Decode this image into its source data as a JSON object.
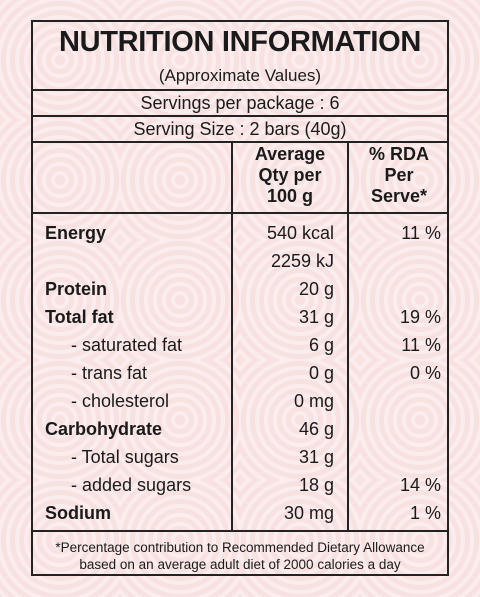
{
  "header": {
    "title": "NUTRITION INFORMATION",
    "subtitle": "(Approximate Values)",
    "servings": "Servings per package : 6",
    "serving_size": "Serving Size : 2 bars (40g)"
  },
  "table": {
    "columns": [
      [
        "Average",
        "Qty per",
        "100 g"
      ],
      [
        "% RDA",
        "Per",
        "Serve*"
      ]
    ],
    "rows": [
      {
        "name": "Energy",
        "bold": true,
        "qty": [
          "540 kcal",
          "2259 kJ"
        ],
        "rda": "11 %"
      },
      {
        "name": "Protein",
        "bold": true,
        "qty": [
          "20 g"
        ]
      },
      {
        "name": "Total fat",
        "bold": true,
        "qty": [
          "31 g"
        ],
        "rda": "19 %"
      },
      {
        "name": "- saturated fat",
        "bold": false,
        "qty": [
          "6 g"
        ],
        "rda": "11 %"
      },
      {
        "name": "- trans fat",
        "bold": false,
        "qty": [
          "0 g"
        ],
        "rda": "0 %"
      },
      {
        "name": "- cholesterol",
        "bold": false,
        "qty": [
          "0 mg"
        ]
      },
      {
        "name": "Carbohydrate",
        "bold": true,
        "qty": [
          "46 g"
        ]
      },
      {
        "name": "- Total sugars",
        "bold": false,
        "qty": [
          "31 g"
        ]
      },
      {
        "name": "- added sugars",
        "bold": false,
        "qty": [
          "18 g"
        ],
        "rda": "14 %"
      },
      {
        "name": "Sodium",
        "bold": true,
        "qty": [
          "30 mg"
        ],
        "rda": "1 %"
      }
    ]
  },
  "footnote": [
    "*Percentage contribution to Recommended Dietary Allowance",
    "based on an average adult diet of 2000 calories a day"
  ]
}
